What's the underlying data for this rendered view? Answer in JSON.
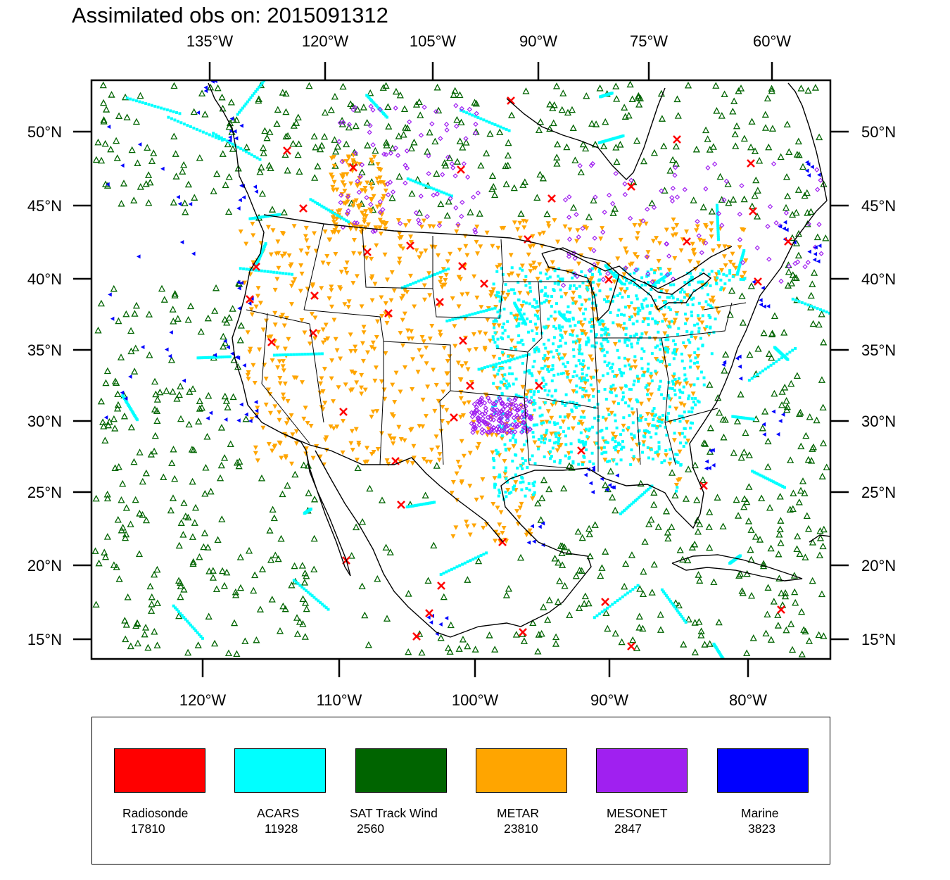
{
  "title": "Assimilated obs on: 2015091312",
  "axes": {
    "top_lon_labels": [
      "135°W",
      "120°W",
      "105°W",
      "90°W",
      "75°W",
      "60°W"
    ],
    "bottom_lon_labels": [
      "120°W",
      "110°W",
      "100°W",
      "90°W",
      "80°W"
    ],
    "lat_labels": [
      "50°N",
      "45°N",
      "40°N",
      "35°N",
      "30°N",
      "25°N",
      "20°N",
      "15°N"
    ]
  },
  "legend": [
    {
      "name": "Radiosonde",
      "count": "17810",
      "color": "#ff0000"
    },
    {
      "name": "ACARS",
      "count": "11928",
      "color": "#00ffff"
    },
    {
      "name": "SAT Track Wind",
      "count": "2560",
      "color": "#006400"
    },
    {
      "name": "METAR",
      "count": "23810",
      "color": "#ffa500"
    },
    {
      "name": "MESONET",
      "count": "2847",
      "color": "#a020f0"
    },
    {
      "name": "Marine",
      "count": "3823",
      "color": "#0000ff"
    }
  ]
}
